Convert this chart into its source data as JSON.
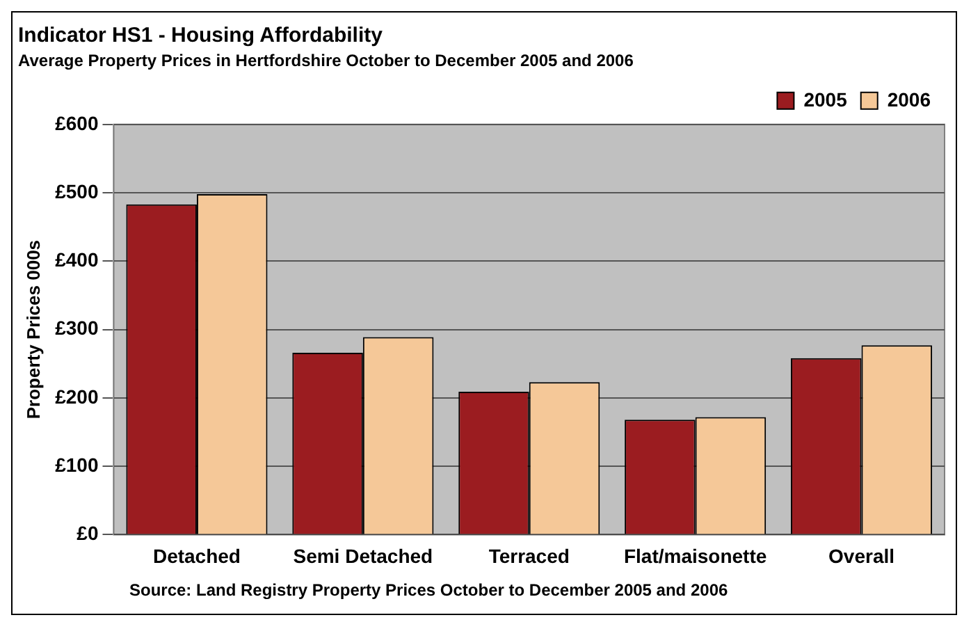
{
  "chart_data": {
    "type": "bar",
    "title": "Indicator HS1 - Housing Affordability",
    "subtitle": "Average Property Prices in Hertfordshire October to December 2005 and 2006",
    "ylabel": "Property Prices 000s",
    "categories": [
      "Detached",
      "Semi Detached",
      "Terraced",
      "Flat/maisonette",
      "Overall"
    ],
    "series": [
      {
        "name": "2005",
        "color": "#9b1c20",
        "values": [
          483,
          266,
          209,
          168,
          258
        ]
      },
      {
        "name": "2006",
        "color": "#f5c898",
        "values": [
          498,
          289,
          223,
          172,
          277
        ]
      }
    ],
    "ylim": [
      0,
      600
    ],
    "yticks": [
      {
        "value": 0,
        "label": "£0"
      },
      {
        "value": 100,
        "label": "£100"
      },
      {
        "value": 200,
        "label": "£200"
      },
      {
        "value": 300,
        "label": "£300"
      },
      {
        "value": 400,
        "label": "£400"
      },
      {
        "value": 500,
        "label": "£500"
      },
      {
        "value": 600,
        "label": "£600"
      }
    ],
    "grid": "y",
    "legend": "top right",
    "annotations": [
      "Source: Land Registry Property Prices October to December 2005 and 2006"
    ]
  }
}
